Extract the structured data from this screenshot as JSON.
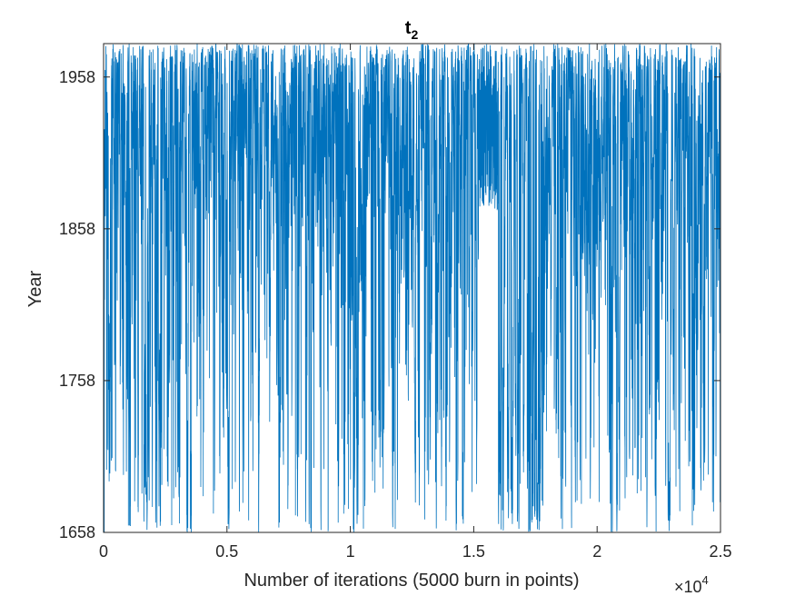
{
  "chart_data": {
    "type": "line",
    "title": "t",
    "title_subscript": "2",
    "xlabel": "Number of iterations (5000 burn in points)",
    "ylabel": "Year",
    "xlim": [
      0,
      25000
    ],
    "ylim": [
      1658,
      1980
    ],
    "x_ticks": [
      0,
      5000,
      10000,
      15000,
      20000,
      25000
    ],
    "x_tick_labels": [
      "0",
      "0.5",
      "1",
      "1.5",
      "2",
      "2.5"
    ],
    "x_exponent_base": "×10",
    "x_exponent_power": "4",
    "y_ticks": [
      1658,
      1758,
      1858,
      1958
    ],
    "y_tick_labels": [
      "1658",
      "1758",
      "1858",
      "1958"
    ],
    "grid": false,
    "legend": "none",
    "color": "#0072BD",
    "series_note": "MCMC trace of 25000 samples ranging 1658-1980, densest near the upper bound; sparse band around 1.5-1.7 x10^4 before dense lower region ~1.6-1.75 x10^4"
  }
}
